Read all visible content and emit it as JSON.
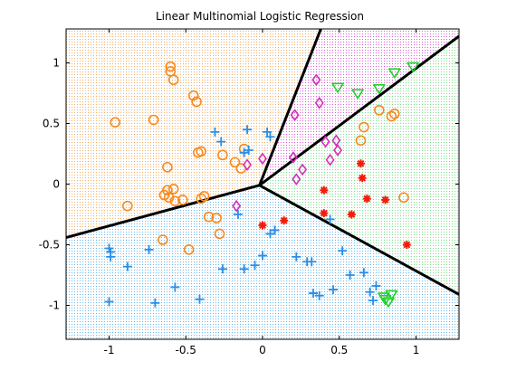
{
  "chart_data": {
    "type": "scatter",
    "title": "Linear Multinomial Logistic Regression",
    "xlabel": "",
    "ylabel": "",
    "xlim": [
      -1.28,
      1.28
    ],
    "ylim": [
      -1.28,
      1.28
    ],
    "xticks": [
      "-1",
      "-0.5",
      "0",
      "0.5",
      "1"
    ],
    "yticks": [
      "1",
      "0.5",
      "0",
      "-0.5",
      "-1"
    ],
    "xtick_values": [
      -1,
      -0.5,
      0,
      0.5,
      1
    ],
    "ytick_values": [
      1,
      0.5,
      0,
      -0.5,
      -1
    ],
    "grid": false,
    "region_colors": [
      "#f6b066",
      "#6ab8ee",
      "#de5fd6",
      "#7be08a",
      "#f2f2f2"
    ],
    "boundaries": [
      [
        [
          -1.28,
          -0.44
        ],
        [
          -0.02,
          -0.01
        ],
        [
          1.28,
          -0.91
        ]
      ],
      [
        [
          -0.02,
          -0.01
        ],
        [
          0.38,
          1.28
        ]
      ],
      [
        [
          -0.02,
          -0.01
        ],
        [
          1.28,
          1.22
        ]
      ]
    ],
    "series": [
      {
        "marker": "circle",
        "color": "#f58a1f",
        "points": [
          [
            -0.96,
            0.51
          ],
          [
            -0.88,
            -0.18
          ],
          [
            -0.71,
            0.53
          ],
          [
            -0.65,
            -0.46
          ],
          [
            -0.64,
            -0.09
          ],
          [
            -0.61,
            -0.11
          ],
          [
            -0.57,
            -0.14
          ],
          [
            -0.48,
            -0.54
          ],
          [
            -0.45,
            0.73
          ],
          [
            -0.43,
            0.68
          ],
          [
            -0.42,
            0.26
          ],
          [
            -0.4,
            0.27
          ],
          [
            -0.35,
            -0.27
          ],
          [
            -0.3,
            -0.28
          ],
          [
            -0.28,
            -0.41
          ],
          [
            -0.26,
            0.24
          ],
          [
            -0.18,
            0.18
          ],
          [
            -0.14,
            0.13
          ],
          [
            -0.62,
            0.14
          ],
          [
            -0.6,
            0.97
          ],
          [
            -0.6,
            0.93
          ],
          [
            -0.58,
            0.86
          ],
          [
            -0.62,
            -0.05
          ],
          [
            -0.58,
            -0.04
          ],
          [
            -0.52,
            -0.13
          ],
          [
            -0.4,
            -0.12
          ],
          [
            -0.38,
            -0.1
          ],
          [
            -0.12,
            0.29
          ],
          [
            0.64,
            0.36
          ],
          [
            0.66,
            0.47
          ],
          [
            0.76,
            0.61
          ],
          [
            0.84,
            0.56
          ],
          [
            0.86,
            0.58
          ],
          [
            0.92,
            -0.11
          ]
        ]
      },
      {
        "marker": "plus",
        "color": "#2a8ee6",
        "points": [
          [
            -1.0,
            -0.53
          ],
          [
            -0.99,
            -0.56
          ],
          [
            -0.99,
            -0.6
          ],
          [
            -1.0,
            -0.97
          ],
          [
            -0.88,
            -0.68
          ],
          [
            -0.74,
            -0.54
          ],
          [
            -0.7,
            -0.98
          ],
          [
            -0.57,
            -0.85
          ],
          [
            -0.41,
            -0.95
          ],
          [
            -0.31,
            0.43
          ],
          [
            -0.27,
            0.35
          ],
          [
            -0.26,
            -0.7
          ],
          [
            -0.16,
            -0.25
          ],
          [
            -0.12,
            -0.7
          ],
          [
            -0.1,
            0.45
          ],
          [
            -0.05,
            -0.67
          ],
          [
            0.0,
            -0.59
          ],
          [
            0.03,
            0.43
          ],
          [
            0.05,
            -0.41
          ],
          [
            0.08,
            -0.38
          ],
          [
            0.22,
            -0.6
          ],
          [
            0.29,
            -0.64
          ],
          [
            0.32,
            -0.64
          ],
          [
            0.33,
            -0.9
          ],
          [
            0.37,
            -0.92
          ],
          [
            0.44,
            -0.29
          ],
          [
            0.46,
            -0.87
          ],
          [
            0.52,
            -0.55
          ],
          [
            0.57,
            -0.75
          ],
          [
            0.66,
            -0.73
          ],
          [
            0.7,
            -0.89
          ],
          [
            0.72,
            -0.96
          ],
          [
            0.74,
            -0.84
          ],
          [
            -0.12,
            0.26
          ],
          [
            -0.09,
            0.28
          ],
          [
            0.05,
            0.39
          ]
        ]
      },
      {
        "marker": "diamond",
        "color": "#d62fbe",
        "points": [
          [
            -0.17,
            -0.18
          ],
          [
            -0.1,
            0.16
          ],
          [
            0.0,
            0.21
          ],
          [
            0.21,
            0.57
          ],
          [
            0.2,
            0.22
          ],
          [
            0.22,
            0.04
          ],
          [
            0.26,
            0.12
          ],
          [
            0.35,
            0.86
          ],
          [
            0.37,
            0.67
          ],
          [
            0.41,
            0.35
          ],
          [
            0.44,
            0.2
          ],
          [
            0.48,
            0.36
          ],
          [
            0.49,
            0.28
          ]
        ]
      },
      {
        "marker": "triangle",
        "color": "#21d12c",
        "points": [
          [
            0.49,
            0.8
          ],
          [
            0.62,
            0.75
          ],
          [
            0.76,
            0.79
          ],
          [
            0.86,
            0.92
          ],
          [
            0.98,
            0.97
          ],
          [
            0.79,
            -0.93
          ],
          [
            0.8,
            -0.95
          ],
          [
            0.82,
            -0.97
          ],
          [
            0.84,
            -0.91
          ]
        ]
      },
      {
        "marker": "asterisk",
        "color": "#f51a0a",
        "points": [
          [
            0.0,
            -0.34
          ],
          [
            0.14,
            -0.3
          ],
          [
            0.4,
            -0.05
          ],
          [
            0.4,
            -0.24
          ],
          [
            0.58,
            -0.25
          ],
          [
            0.64,
            0.17
          ],
          [
            0.65,
            0.05
          ],
          [
            0.68,
            -0.12
          ],
          [
            0.8,
            -0.13
          ],
          [
            0.94,
            -0.5
          ]
        ]
      }
    ]
  }
}
